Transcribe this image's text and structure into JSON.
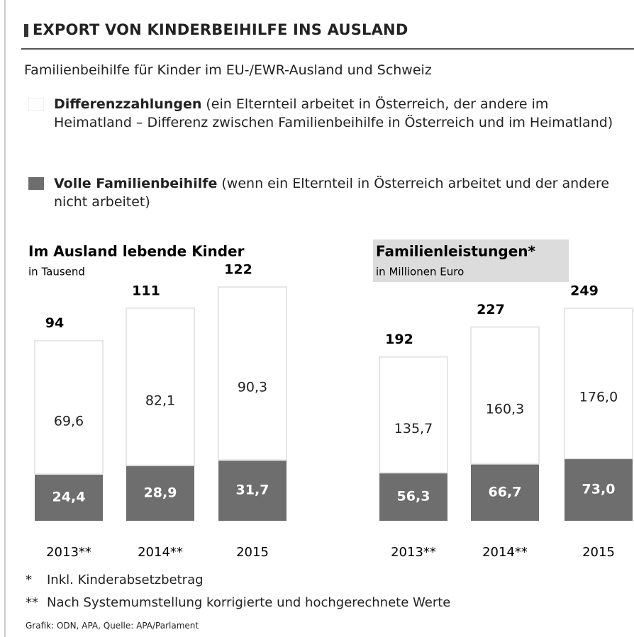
{
  "title": "EXPORT VON KINDERBEIHILFE INS AUSLAND",
  "subtitle": "Familienbeihilfe für Kinder im EU-/EWR-Ausland und Schweiz",
  "chart_data": [
    {
      "type": "bar",
      "stacked": true,
      "title": "Im Ausland lebende Kinder",
      "subtitle": "in Tausend",
      "categories": [
        "2013**",
        "2014**",
        "2015"
      ],
      "series": [
        {
          "name": "Differenzzahlungen",
          "description": "(ein Elternteil arbeitet in Österreich, der andere im Heimatland – Differenz zwischen Familienbeihilfe in Österreich und im Heimatland)",
          "color": "#ffffff",
          "values": [
            69.6,
            82.1,
            90.3
          ],
          "value_labels": [
            "69,6",
            "82,1",
            "90,3"
          ]
        },
        {
          "name": "Volle Familienbeihilfe",
          "description": "(wenn ein Elternteil in Österreich arbeitet und der andere nicht arbeitet)",
          "color": "#6e6e6e",
          "values": [
            24.4,
            28.9,
            31.7
          ],
          "value_labels": [
            "24,4",
            "28,9",
            "31,7"
          ]
        }
      ],
      "totals": [
        94,
        111,
        122
      ]
    },
    {
      "type": "bar",
      "stacked": true,
      "title": "Familienleistungen*",
      "subtitle": "in Millionen Euro",
      "categories": [
        "2013**",
        "2014**",
        "2015"
      ],
      "series": [
        {
          "color": "#ffffff",
          "values": [
            135.7,
            160.3,
            176
          ],
          "value_labels": [
            "135,7",
            "160,3",
            "176,0"
          ]
        },
        {
          "color": "#6e6e6e",
          "values": [
            56.3,
            66.7,
            73
          ],
          "value_labels": [
            "56,3",
            "66,7",
            "73,0"
          ]
        }
      ],
      "totals": [
        192,
        227,
        249
      ]
    }
  ],
  "footnotes": [
    {
      "mark": "*",
      "text": "Inkl. Kinderabsetzbetrag"
    },
    {
      "mark": "**",
      "text": "Nach Systemumstellung korrigierte und hochgerechnete Werte"
    }
  ],
  "source": "Grafik: ODN, APA, Quelle: APA/Parlament"
}
